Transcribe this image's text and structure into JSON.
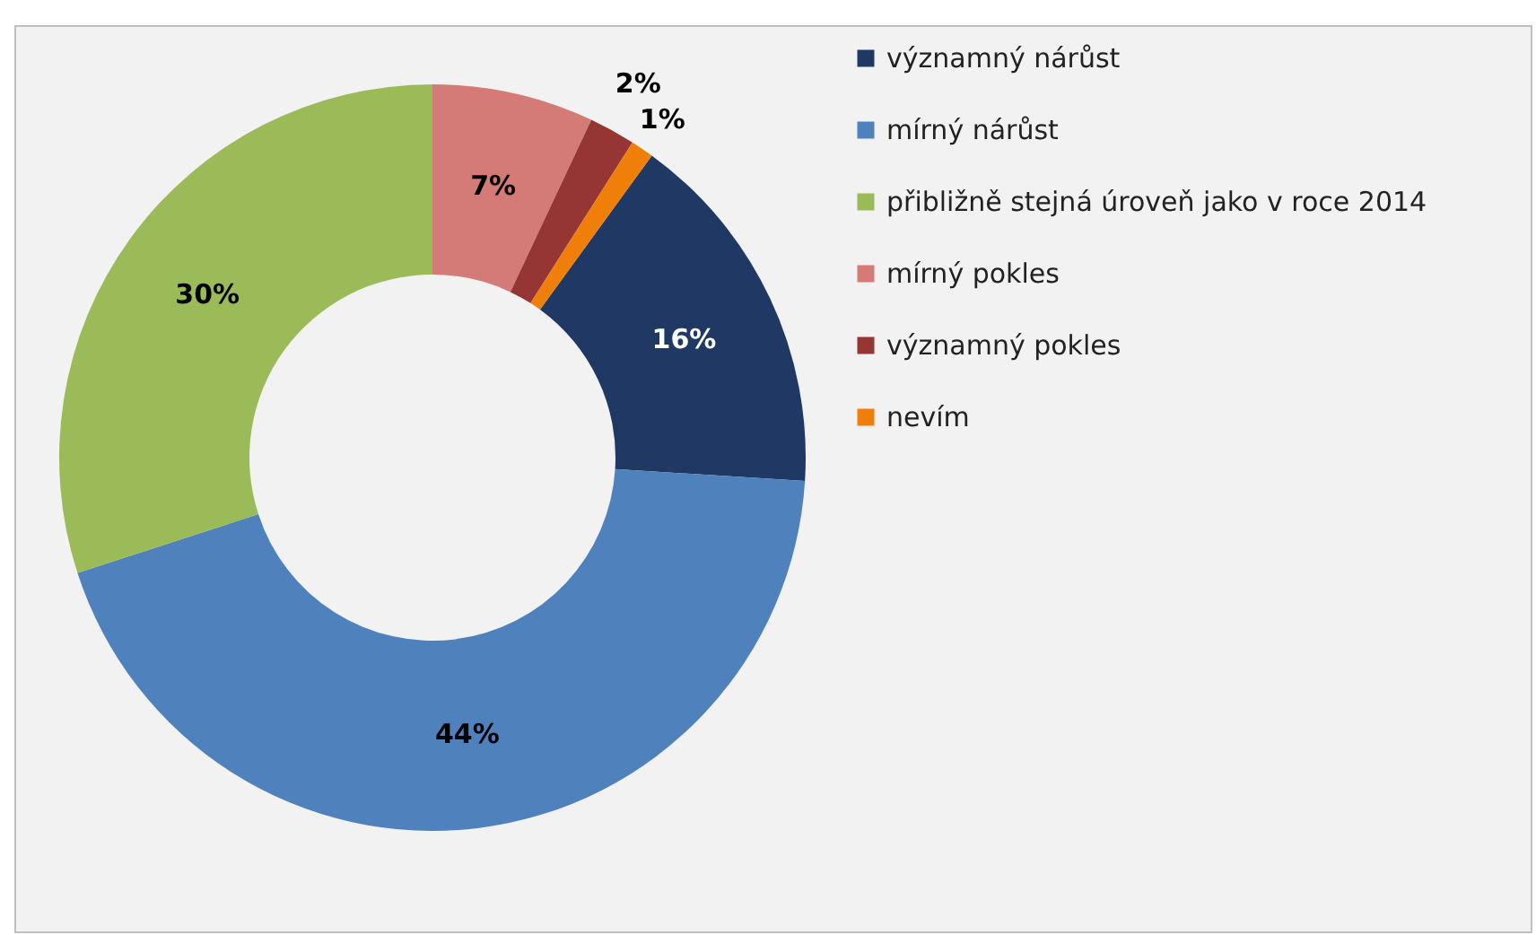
{
  "chart_data": {
    "type": "donut",
    "categories": [
      "významný nárůst",
      "mírný nárůst",
      "přibližně stejná úroveň jako v roce 2014",
      "mírný pokles",
      "významný pokles",
      "nevím"
    ],
    "values": [
      16,
      44,
      30,
      7,
      2,
      1
    ],
    "colors": [
      "#1f3864",
      "#4f81bd",
      "#9bbb59",
      "#d47b78",
      "#963634",
      "#f07f09"
    ],
    "value_labels": [
      "16%",
      "44%",
      "30%",
      "7%",
      "2%",
      "1%"
    ],
    "legend": "right"
  }
}
